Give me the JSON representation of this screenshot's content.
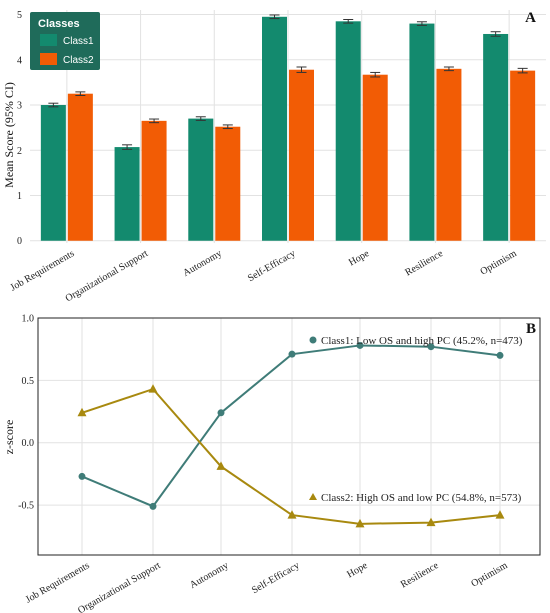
{
  "colors": {
    "class1_bar": "#138a6e",
    "class2_bar": "#f25c05",
    "class1_line": "#3f7c78",
    "class2_line": "#a8890f",
    "legend_bg": "#1f6b5a",
    "grid": "#e2e2e2"
  },
  "chart_data": [
    {
      "type": "bar",
      "panel_label": "A",
      "categories": [
        "Job Requirements",
        "Organizational Support",
        "Autonomy",
        "Self-Efficacy",
        "Hope",
        "Resilience",
        "Optimism"
      ],
      "series": [
        {
          "name": "Class1",
          "values": [
            3.0,
            2.07,
            2.7,
            4.95,
            4.85,
            4.8,
            4.57
          ],
          "ci": [
            0.04,
            0.05,
            0.04,
            0.04,
            0.04,
            0.04,
            0.05
          ]
        },
        {
          "name": "Class2",
          "values": [
            3.25,
            2.65,
            2.52,
            3.78,
            3.67,
            3.8,
            3.76
          ],
          "ci": [
            0.04,
            0.04,
            0.04,
            0.06,
            0.05,
            0.04,
            0.05
          ]
        }
      ],
      "xlabel": "",
      "ylabel": "Mean Score (95% CI)",
      "ylim": [
        -0.05,
        5.1
      ],
      "yticks": [
        "0",
        "1",
        "2",
        "3",
        "4",
        "5"
      ],
      "legend": {
        "title": "Classes",
        "position": "top-left",
        "labels": [
          "Class1",
          "Class2"
        ]
      },
      "grid": true
    },
    {
      "type": "line",
      "panel_label": "B",
      "categories": [
        "Job Requirements",
        "Organizational Support",
        "Autonomy",
        "Self-Efficacy",
        "Hope",
        "Resilience",
        "Optimism"
      ],
      "series": [
        {
          "name": "Class1: Low OS and high PC (45.2%, n=473)",
          "marker": "circle",
          "values": [
            -0.27,
            -0.51,
            0.24,
            0.71,
            0.78,
            0.77,
            0.7
          ]
        },
        {
          "name": "Class2: High OS and low PC (54.8%, n=573)",
          "marker": "triangle",
          "values": [
            0.24,
            0.43,
            -0.19,
            -0.58,
            -0.65,
            -0.64,
            -0.58
          ]
        }
      ],
      "xlabel": "",
      "ylabel": "z-score",
      "ylim": [
        -0.9,
        1.0
      ],
      "yticks": [
        "-0.5",
        "0.0",
        "0.5",
        "1.0"
      ],
      "grid": true
    }
  ]
}
